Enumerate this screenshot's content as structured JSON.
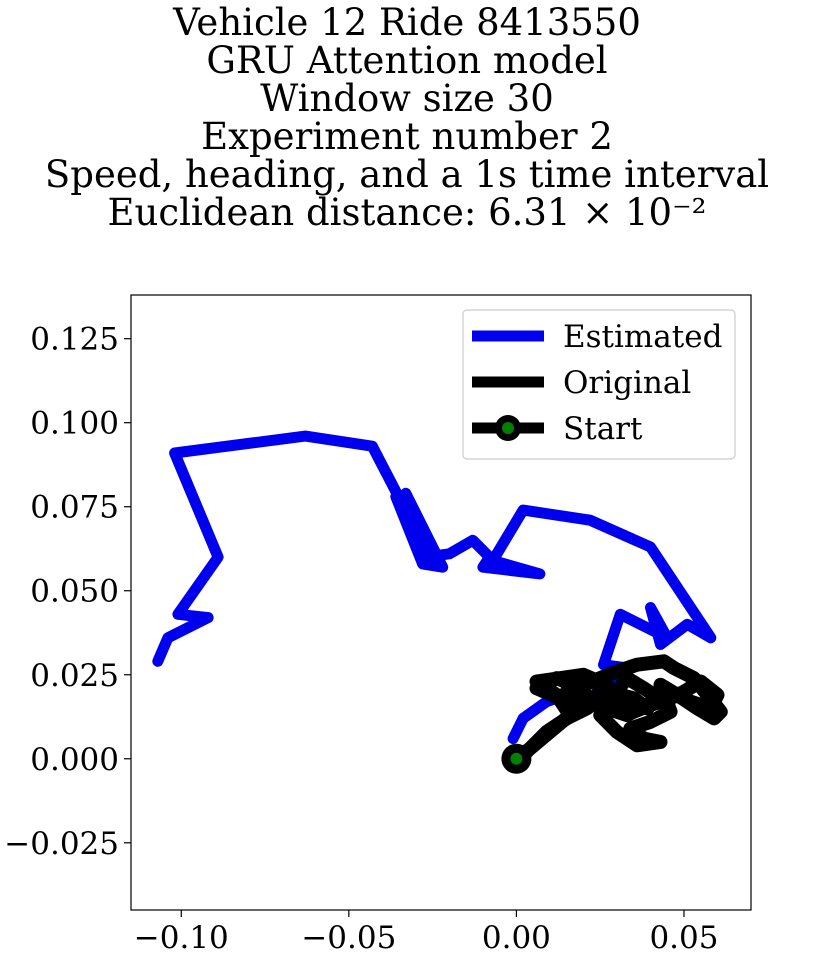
{
  "title_lines": [
    "Vehicle 12 Ride 8413550",
    "GRU Attention model",
    "Window size 30",
    "Experiment number 2",
    "Speed, heading, and a 1s time interval",
    "Euclidean distance: 6.31 × 10⁻²"
  ],
  "chart_data": {
    "type": "line",
    "xlim": [
      -0.115,
      0.07
    ],
    "ylim": [
      -0.045,
      0.138
    ],
    "xticks": [
      -0.1,
      -0.05,
      0.0,
      0.05
    ],
    "xtick_labels": [
      "−0.10",
      "−0.05",
      "0.00",
      "0.05"
    ],
    "yticks": [
      -0.025,
      0.0,
      0.025,
      0.05,
      0.075,
      0.1,
      0.125
    ],
    "ytick_labels": [
      "−0.025",
      "0.000",
      "0.025",
      "0.050",
      "0.075",
      "0.100",
      "0.125"
    ],
    "grid": false,
    "legend_position": "upper-right",
    "series": [
      {
        "name": "Estimated",
        "color": "#0000ee",
        "x": [
          -0.107,
          -0.104,
          -0.098,
          -0.092,
          -0.101,
          -0.089,
          -0.102,
          -0.063,
          -0.043,
          -0.03,
          -0.036,
          -0.028,
          -0.022,
          -0.033,
          -0.027,
          -0.02,
          -0.013,
          -0.008,
          -0.01,
          0.007,
          -0.007,
          0.002,
          0.022,
          0.04,
          0.058,
          0.051,
          0.043,
          0.04,
          0.045,
          0.031,
          0.026,
          0.033,
          0.027,
          0.021,
          0.015,
          0.009,
          0.002,
          -0.001
        ],
        "y": [
          0.029,
          0.036,
          0.039,
          0.042,
          0.043,
          0.06,
          0.091,
          0.096,
          0.093,
          0.068,
          0.078,
          0.058,
          0.057,
          0.079,
          0.06,
          0.061,
          0.065,
          0.06,
          0.057,
          0.055,
          0.059,
          0.074,
          0.071,
          0.063,
          0.036,
          0.04,
          0.034,
          0.045,
          0.036,
          0.043,
          0.028,
          0.027,
          0.023,
          0.022,
          0.019,
          0.017,
          0.012,
          0.006
        ]
      },
      {
        "name": "Original",
        "color": "#000000",
        "x": [
          0.0,
          0.004,
          0.01,
          0.016,
          0.012,
          0.006,
          0.02,
          0.027,
          0.021,
          0.015,
          0.03,
          0.036,
          0.044,
          0.047,
          0.053,
          0.057,
          0.061,
          0.059,
          0.054,
          0.048,
          0.043,
          0.046,
          0.04,
          0.034,
          0.038,
          0.043,
          0.036,
          0.03,
          0.025,
          0.029,
          0.033,
          0.038,
          0.044,
          0.05,
          0.055,
          0.06,
          0.058,
          0.052,
          0.045,
          0.039,
          0.033,
          0.027,
          0.022,
          0.017,
          0.012,
          0.006,
          0.013,
          0.019,
          0.026,
          0.031,
          0.035,
          0.039,
          0.041,
          0.044,
          0.046,
          0.04,
          0.035,
          0.03,
          0.025,
          0.021,
          0.015,
          0.009,
          0.005,
          0.002,
          0.0
        ],
        "y": [
          0.0,
          0.003,
          0.008,
          0.013,
          0.019,
          0.023,
          0.025,
          0.022,
          0.016,
          0.02,
          0.026,
          0.028,
          0.029,
          0.027,
          0.024,
          0.019,
          0.014,
          0.012,
          0.015,
          0.019,
          0.022,
          0.014,
          0.011,
          0.009,
          0.006,
          0.005,
          0.004,
          0.008,
          0.013,
          0.019,
          0.024,
          0.021,
          0.017,
          0.02,
          0.023,
          0.019,
          0.015,
          0.017,
          0.02,
          0.016,
          0.013,
          0.015,
          0.018,
          0.022,
          0.024,
          0.021,
          0.018,
          0.017,
          0.016,
          0.019,
          0.018,
          0.015,
          0.017,
          0.02,
          0.018,
          0.016,
          0.014,
          0.016,
          0.018,
          0.015,
          0.012,
          0.008,
          0.004,
          0.001,
          0.0
        ]
      },
      {
        "name": "Start",
        "color": "#000000",
        "marker_face": "#008000",
        "x": [
          0.0
        ],
        "y": [
          0.0
        ]
      }
    ]
  }
}
